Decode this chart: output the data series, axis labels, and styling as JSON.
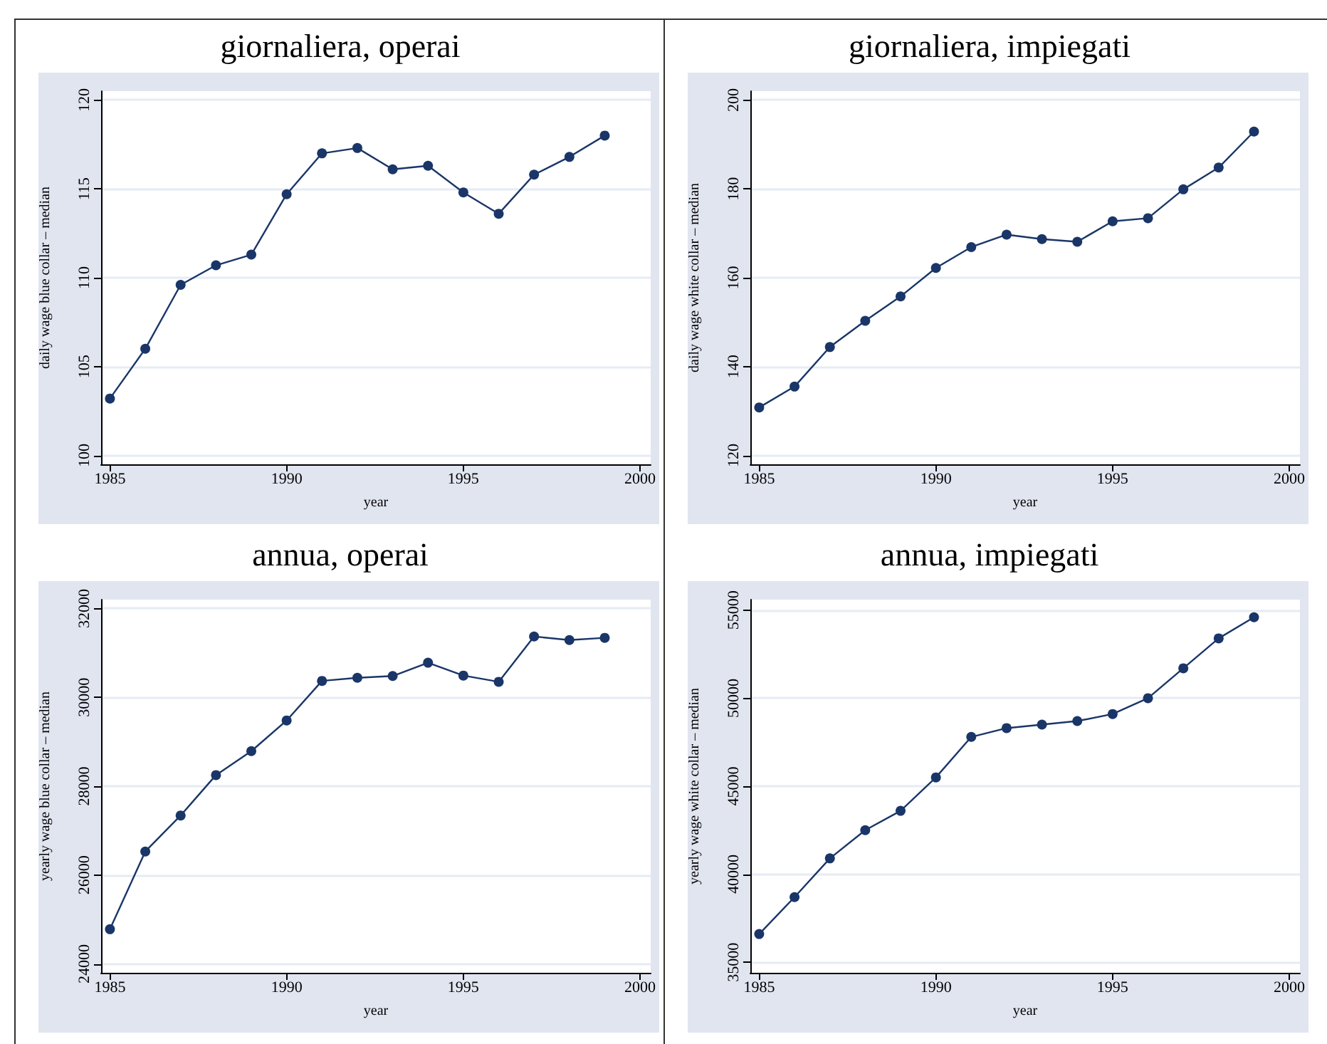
{
  "chart_data": [
    {
      "type": "line",
      "title": "giornaliera, operai",
      "xlabel": "year",
      "ylabel": "daily wage blue collar – median",
      "color": "#1a3668",
      "marker": "circle",
      "line_style": "solid",
      "grid": "y",
      "x": [
        1985,
        1986,
        1987,
        1988,
        1989,
        1990,
        1991,
        1992,
        1993,
        1994,
        1995,
        1996,
        1997,
        1998,
        1999
      ],
      "values": [
        103.2,
        106.0,
        109.6,
        110.7,
        111.3,
        114.7,
        117.0,
        117.3,
        116.1,
        116.3,
        114.8,
        113.6,
        115.8,
        116.8,
        118.0
      ],
      "xlim": [
        1984.75,
        2000.3
      ],
      "xticks": [
        1985,
        1990,
        1995,
        2000
      ],
      "ylim": [
        99.5,
        120.5
      ],
      "yticks": [
        100,
        105,
        110,
        115,
        120
      ]
    },
    {
      "type": "line",
      "title": "giornaliera, impiegati",
      "xlabel": "year",
      "ylabel": "daily wage white collar – median",
      "color": "#1a3668",
      "marker": "circle",
      "line_style": "solid",
      "grid": "y",
      "x": [
        1985,
        1986,
        1987,
        1988,
        1989,
        1990,
        1991,
        1992,
        1993,
        1994,
        1995,
        1996,
        1997,
        1998,
        1999
      ],
      "values": [
        130.8,
        135.5,
        144.4,
        150.3,
        155.8,
        162.2,
        166.9,
        169.7,
        168.7,
        168.1,
        172.7,
        173.4,
        179.9,
        184.8,
        192.9
      ],
      "xlim": [
        1984.75,
        2000.3
      ],
      "xticks": [
        1985,
        1990,
        1995,
        2000
      ],
      "ylim": [
        118,
        202
      ],
      "yticks": [
        120,
        140,
        160,
        180,
        200
      ]
    },
    {
      "type": "line",
      "title": "annua, operai",
      "xlabel": "year",
      "ylabel": "yearly wage blue collar – median",
      "color": "#1a3668",
      "marker": "circle",
      "line_style": "solid",
      "grid": "y",
      "x": [
        1985,
        1986,
        1987,
        1988,
        1989,
        1990,
        1991,
        1992,
        1993,
        1994,
        1995,
        1996,
        1997,
        1998,
        1999
      ],
      "values": [
        24780,
        26530,
        27340,
        28250,
        28790,
        29480,
        30370,
        30440,
        30480,
        30780,
        30490,
        30350,
        31370,
        31290,
        31340
      ],
      "xlim": [
        1984.75,
        2000.3
      ],
      "xticks": [
        1985,
        1990,
        1995,
        2000
      ],
      "ylim": [
        23800,
        32200
      ],
      "yticks": [
        24000,
        26000,
        28000,
        30000,
        32000
      ]
    },
    {
      "type": "line",
      "title": "annua, impiegati",
      "xlabel": "year",
      "ylabel": "yearly wage white collar – median",
      "color": "#1a3668",
      "marker": "circle",
      "line_style": "solid",
      "grid": "y",
      "x": [
        1985,
        1986,
        1987,
        1988,
        1989,
        1990,
        1991,
        1992,
        1993,
        1994,
        1995,
        1996,
        1997,
        1998,
        1999
      ],
      "values": [
        36600,
        38700,
        40900,
        42500,
        43600,
        45500,
        47800,
        48300,
        48500,
        48700,
        49100,
        50000,
        51700,
        53400,
        54600
      ],
      "xlim": [
        1984.75,
        2000.3
      ],
      "xticks": [
        1985,
        1990,
        1995,
        2000
      ],
      "ylim": [
        34400,
        55600
      ],
      "yticks": [
        35000,
        40000,
        45000,
        50000,
        55000
      ]
    }
  ]
}
